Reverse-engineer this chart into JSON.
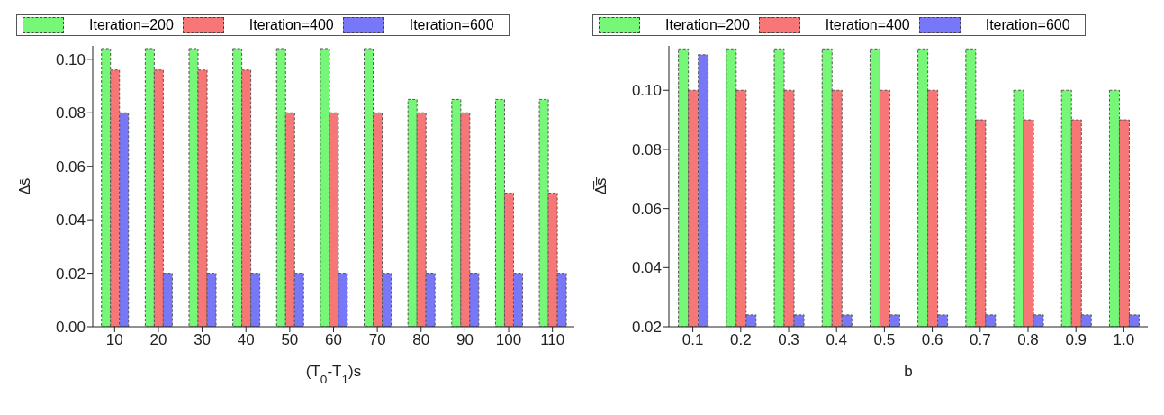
{
  "chart_data": [
    {
      "type": "bar",
      "xlabel": "(T$_{0}$-T$_{1}$)s",
      "ylabel": "Δs̄",
      "categories": [
        "10",
        "20",
        "30",
        "40",
        "50",
        "60",
        "70",
        "80",
        "90",
        "100",
        "110"
      ],
      "ylim": [
        0,
        0.105
      ],
      "yticks": [
        {
          "value": 0,
          "label": "0.00"
        },
        {
          "value": 0.02,
          "label": "0.02"
        },
        {
          "value": 0.04,
          "label": "0.04"
        },
        {
          "value": 0.06,
          "label": "0.06"
        },
        {
          "value": 0.08,
          "label": "0.08"
        },
        {
          "value": 0.1,
          "label": "0.10"
        }
      ],
      "legend": "top",
      "grid": false,
      "series": [
        {
          "name": "Iteration=200",
          "color": "#77f777",
          "values": [
            0.104,
            0.104,
            0.104,
            0.104,
            0.104,
            0.104,
            0.104,
            0.085,
            0.085,
            0.085,
            0.085
          ]
        },
        {
          "name": "Iteration=400",
          "color": "#f77777",
          "values": [
            0.096,
            0.096,
            0.096,
            0.096,
            0.08,
            0.08,
            0.08,
            0.08,
            0.08,
            0.05,
            0.05
          ]
        },
        {
          "name": "Iteration=600",
          "color": "#7777f7",
          "values": [
            0.08,
            0.02,
            0.02,
            0.02,
            0.02,
            0.02,
            0.02,
            0.02,
            0.02,
            0.02,
            0.02
          ]
        }
      ]
    },
    {
      "type": "bar",
      "xlabel": "b",
      "ylabel": "Δ̅s̅",
      "categories": [
        "0.1",
        "0.2",
        "0.3",
        "0.4",
        "0.5",
        "0.6",
        "0.7",
        "0.8",
        "0.9",
        "1.0"
      ],
      "ylim": [
        0.02,
        0.115
      ],
      "yticks": [
        {
          "value": 0.02,
          "label": "0.02"
        },
        {
          "value": 0.04,
          "label": "0.04"
        },
        {
          "value": 0.06,
          "label": "0.06"
        },
        {
          "value": 0.08,
          "label": "0.08"
        },
        {
          "value": 0.1,
          "label": "0.10"
        }
      ],
      "legend": "top",
      "grid": false,
      "series": [
        {
          "name": "Iteration=200",
          "color": "#77f777",
          "values": [
            0.114,
            0.114,
            0.114,
            0.114,
            0.114,
            0.114,
            0.114,
            0.1,
            0.1,
            0.1
          ]
        },
        {
          "name": "Iteration=400",
          "color": "#f77777",
          "values": [
            0.1,
            0.1,
            0.1,
            0.1,
            0.1,
            0.1,
            0.09,
            0.09,
            0.09,
            0.09
          ]
        },
        {
          "name": "Iteration=600",
          "color": "#7777f7",
          "values": [
            0.112,
            0.024,
            0.024,
            0.024,
            0.024,
            0.024,
            0.024,
            0.024,
            0.024,
            0.024
          ]
        }
      ]
    }
  ]
}
